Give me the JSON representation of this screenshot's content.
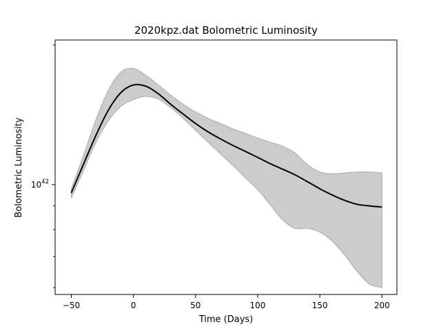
{
  "chart_data": {
    "type": "line",
    "title": "2020kpz.dat Bolometric Luminosity",
    "xlabel": "Time (Days)",
    "ylabel": "Bolometric Luminosity",
    "y_scale": "log",
    "xlim": [
      -63,
      212
    ],
    "ylim": [
      5.8e+41,
      2.05e+42
    ],
    "x_ticks": [
      -50,
      0,
      50,
      100,
      150,
      200
    ],
    "y_major_ticks": [
      {
        "value": 1e+42,
        "base": "10",
        "exponent": "42"
      }
    ],
    "y_minor_ticks": [
      6e+41,
      7e+41,
      8e+41,
      9e+41,
      2e+42
    ],
    "grid": false,
    "band_color": "#cccccc",
    "line_color": "#000000",
    "series": [
      {
        "x": [
          -50,
          -40,
          -30,
          -20,
          -10,
          0,
          10,
          20,
          30,
          40,
          50,
          60,
          70,
          80,
          90,
          100,
          110,
          120,
          130,
          140,
          150,
          160,
          170,
          180,
          190,
          200
        ],
        "y": [
          9.6e+41,
          1.11e+42,
          1.28e+42,
          1.45e+42,
          1.58e+42,
          1.64e+42,
          1.63e+42,
          1.57e+42,
          1.49e+42,
          1.42e+42,
          1.355e+42,
          1.3e+42,
          1.255e+42,
          1.215e+42,
          1.18e+42,
          1.145e+42,
          1.11e+42,
          1.08e+42,
          1.05e+42,
          1.015e+42,
          9.8e+41,
          9.5e+41,
          9.25e+41,
          9.07e+41,
          9e+41,
          8.95e+41
        ],
        "lower": [
          9.35e+41,
          1.075e+42,
          1.235e+42,
          1.375e+42,
          1.475e+42,
          1.525e+42,
          1.55e+42,
          1.53e+42,
          1.465e+42,
          1.39e+42,
          1.31e+42,
          1.235e+42,
          1.165e+42,
          1.1e+42,
          1.035e+42,
          9.75e+41,
          9.05e+41,
          8.4e+41,
          8.05e+41,
          8.05e+41,
          7.9e+41,
          7.55e+41,
          7.05e+41,
          6.5e+41,
          6.1e+41,
          6e+41
        ],
        "upper": [
          9.8e+41,
          1.16e+42,
          1.385e+42,
          1.6e+42,
          1.75e+42,
          1.78e+42,
          1.72e+42,
          1.64e+42,
          1.56e+42,
          1.49e+42,
          1.435e+42,
          1.39e+42,
          1.355e+42,
          1.32e+42,
          1.29e+42,
          1.26e+42,
          1.235e+42,
          1.21e+42,
          1.17e+42,
          1.105e+42,
          1.065e+42,
          1.055e+42,
          1.06e+42,
          1.065e+42,
          1.065e+42,
          1.06e+42
        ]
      }
    ]
  }
}
